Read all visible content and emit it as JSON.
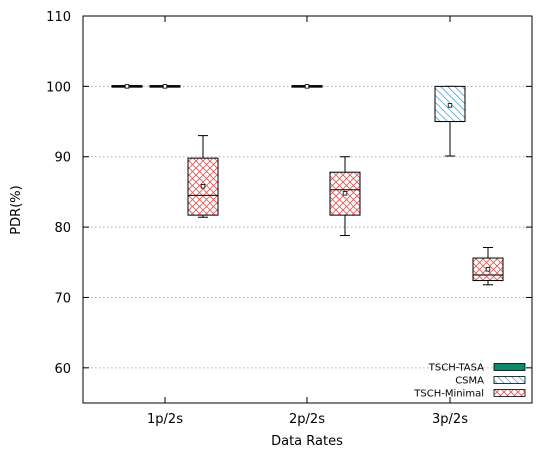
{
  "chart_data": {
    "type": "box",
    "xlabel": "Data Rates",
    "ylabel": "PDR(%)",
    "ylim": [
      55,
      110
    ],
    "yticks": [
      60,
      70,
      80,
      90,
      100,
      110
    ],
    "grid": "horizontal-dotted",
    "legend_position": "bottom-right",
    "categories": [
      "1p/2s",
      "2p/2s",
      "3p/2s"
    ],
    "series": [
      {
        "name": "TSCH-TASA",
        "color": "#0b8a6a",
        "pattern": "solid",
        "boxes": [
          {
            "category": "1p/2s",
            "min": 100,
            "q1": 100,
            "median": 100,
            "q3": 100,
            "max": 100,
            "mean": 100
          }
        ]
      },
      {
        "name": "CSMA",
        "color": "#4a9fd8",
        "pattern": "diagonal",
        "boxes": [
          {
            "category": "1p/2s",
            "min": 100,
            "q1": 100,
            "median": 100,
            "q3": 100,
            "max": 100,
            "mean": 100
          },
          {
            "category": "2p/2s",
            "min": 100,
            "q1": 100,
            "median": 100,
            "q3": 100,
            "max": 100,
            "mean": 100
          },
          {
            "category": "3p/2s",
            "min": 90.1,
            "q1": 95,
            "median": 95,
            "q3": 100,
            "max": 100,
            "mean": 97.3
          }
        ]
      },
      {
        "name": "TSCH-Minimal",
        "color": "#e05a5a",
        "pattern": "crosshatch",
        "boxes": [
          {
            "category": "1p/2s",
            "min": 81.4,
            "q1": 81.7,
            "median": 84.5,
            "q3": 89.8,
            "max": 93,
            "mean": 85.8
          },
          {
            "category": "2p/2s",
            "min": 78.8,
            "q1": 81.7,
            "median": 85.3,
            "q3": 87.8,
            "max": 90,
            "mean": 84.8
          },
          {
            "category": "3p/2s",
            "min": 71.8,
            "q1": 72.4,
            "median": 73.2,
            "q3": 75.6,
            "max": 77.1,
            "mean": 74
          }
        ]
      }
    ]
  }
}
